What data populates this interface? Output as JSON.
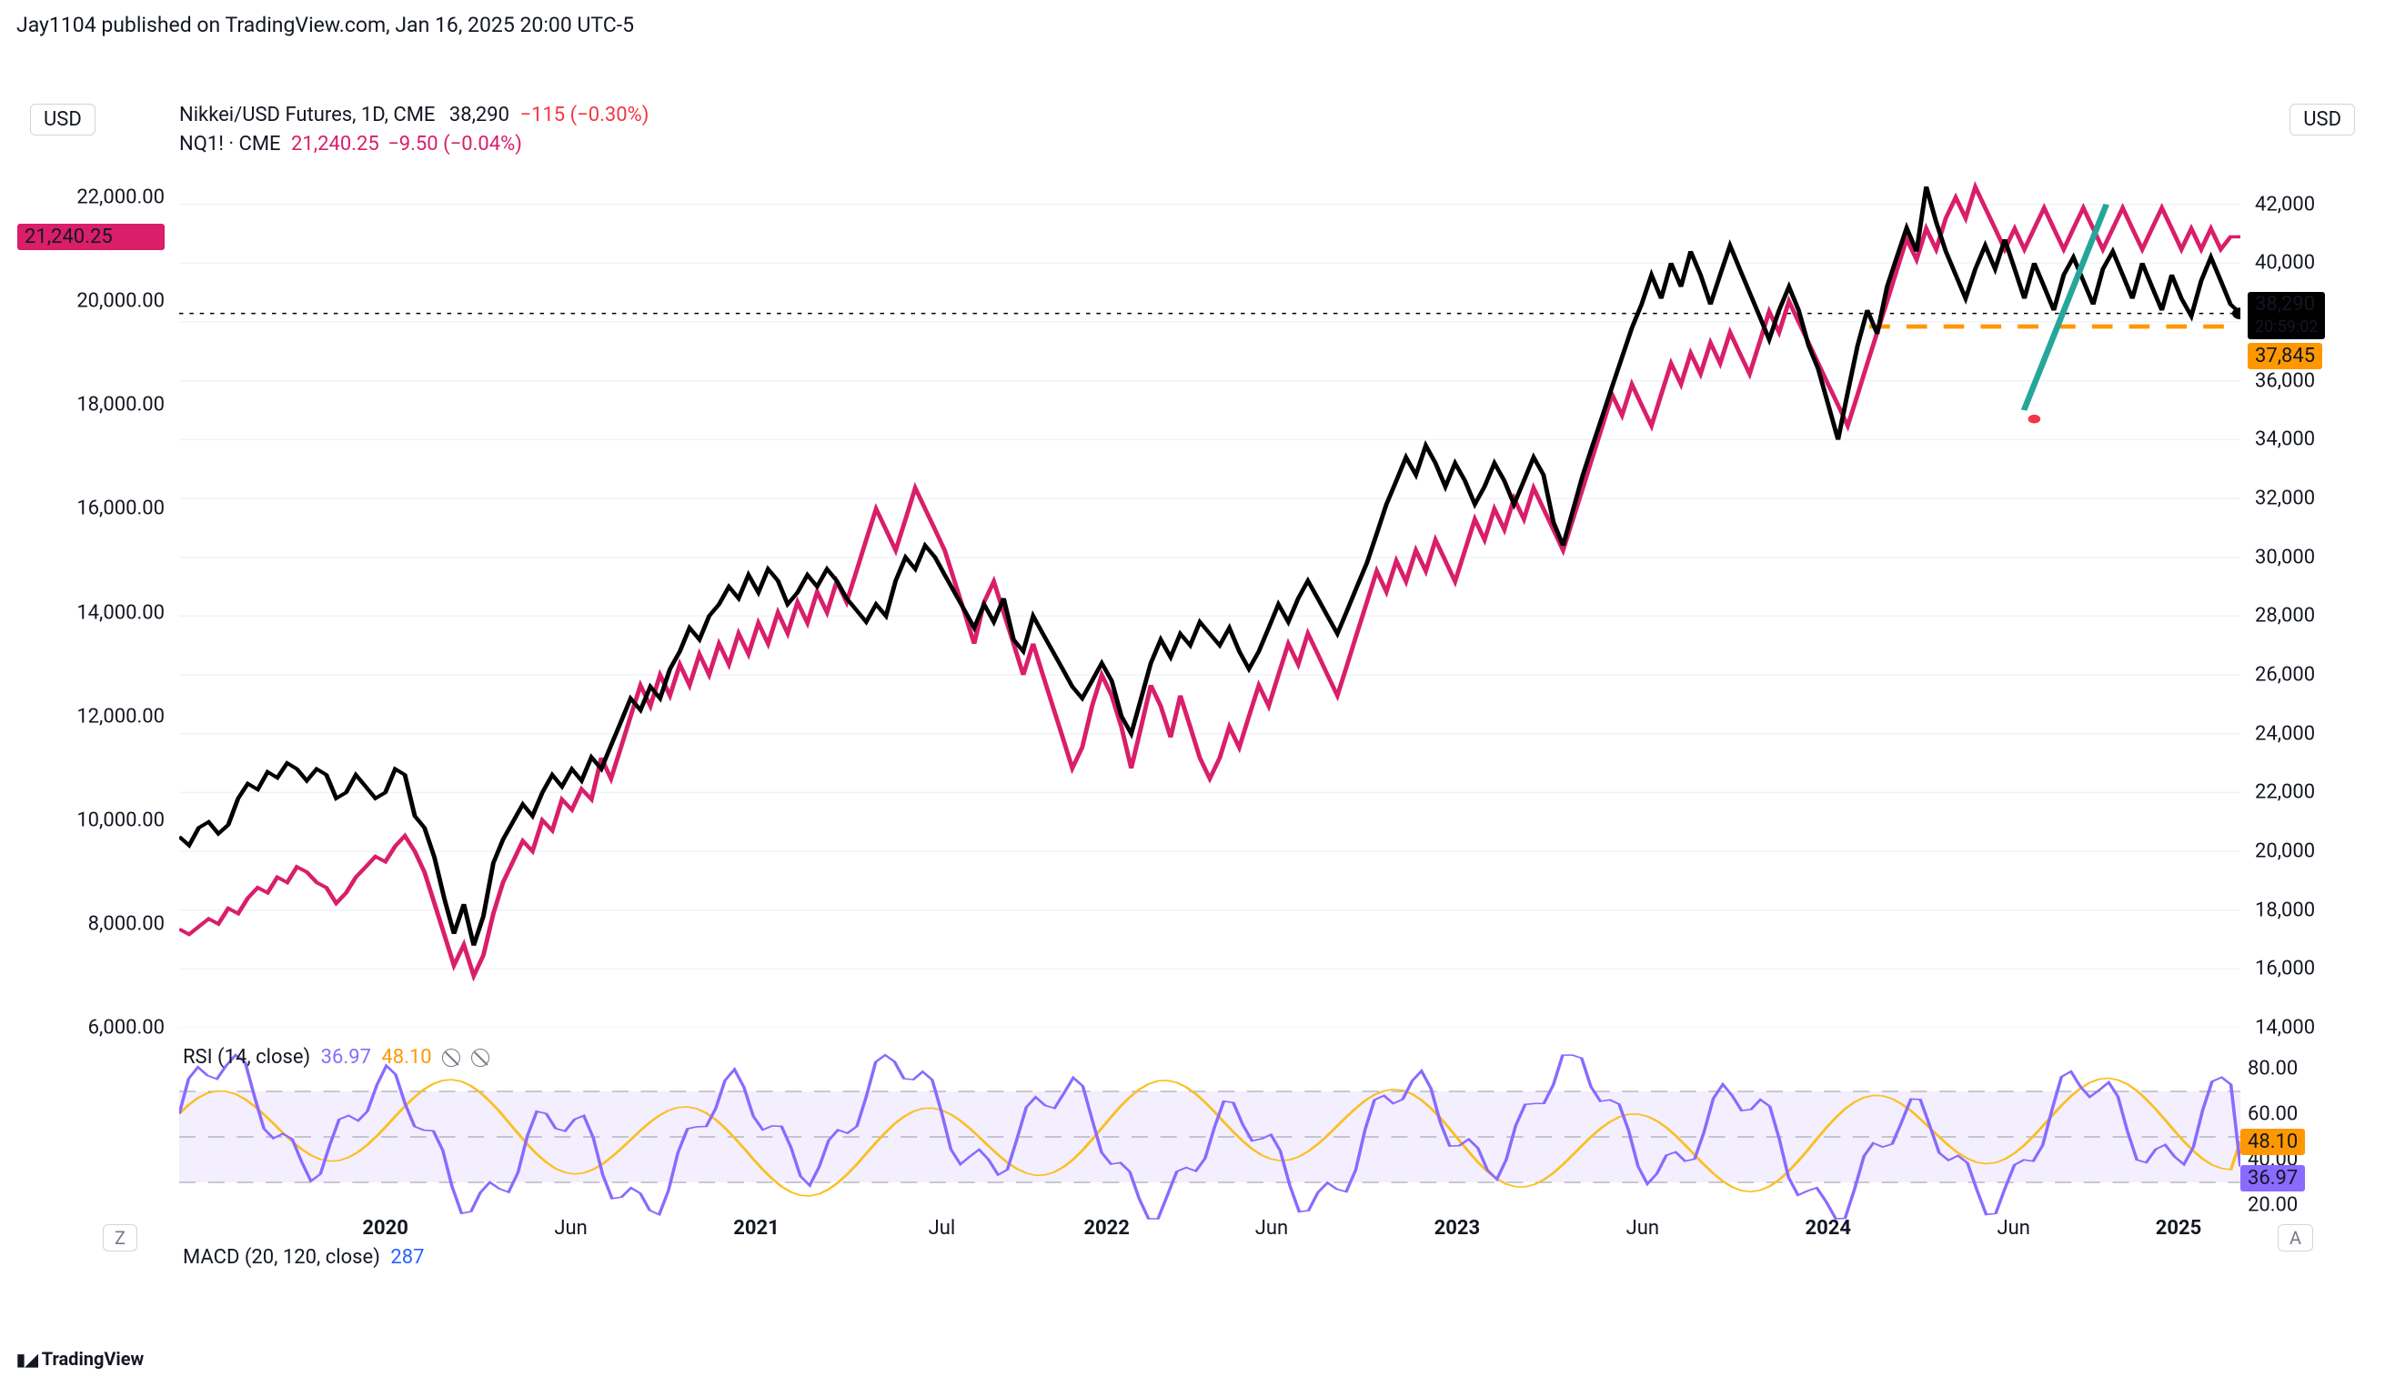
{
  "publish_line": "Jay1104 published on TradingView.com, Jan 16, 2025 20:00 UTC-5",
  "usd_label": "USD",
  "legend": {
    "row1_symbol": "Nikkei/USD Futures, 1D, CME",
    "row1_price": "38,290",
    "row1_change": "−115 (−0.30%)",
    "row2_symbol": "NQ1! · CME",
    "row2_price": "21,240.25",
    "row2_change": "−9.50 (−0.04%)"
  },
  "left_axis": {
    "ticks": [
      "22,000.00",
      "20,000.00",
      "18,000.00",
      "16,000.00",
      "14,000.00",
      "12,000.00",
      "10,000.00",
      "8,000.00",
      "6,000.00"
    ],
    "range_min": 6000,
    "range_max": 23000,
    "badge_value": "21,240.25",
    "badge_color": "#d91e6a",
    "badge_at": 21240
  },
  "right_axis": {
    "ticks": [
      "42,000",
      "40,000",
      "38,290",
      "36,000",
      "34,000",
      "32,000",
      "30,000",
      "28,000",
      "26,000",
      "24,000",
      "22,000",
      "20,000",
      "18,000",
      "16,000",
      "14,000"
    ],
    "range_min": 14000,
    "range_max": 44000,
    "badge_price": "38,290",
    "badge_sub": "20:59:02",
    "badge_price_at": 38290,
    "badge_orange": "37,845",
    "badge_orange_at": 37845
  },
  "xaxis": {
    "labels": [
      {
        "t": "2020",
        "x": 0.1,
        "bold": true
      },
      {
        "t": "Jun",
        "x": 0.19,
        "bold": false
      },
      {
        "t": "2021",
        "x": 0.28,
        "bold": true
      },
      {
        "t": "Jul",
        "x": 0.37,
        "bold": false
      },
      {
        "t": "2022",
        "x": 0.45,
        "bold": true
      },
      {
        "t": "Jun",
        "x": 0.53,
        "bold": false
      },
      {
        "t": "2023",
        "x": 0.62,
        "bold": true
      },
      {
        "t": "Jun",
        "x": 0.71,
        "bold": false
      },
      {
        "t": "2024",
        "x": 0.8,
        "bold": true
      },
      {
        "t": "Jun",
        "x": 0.89,
        "bold": false
      },
      {
        "t": "2025",
        "x": 0.97,
        "bold": true
      }
    ]
  },
  "main_chart": {
    "black_series_color": "#000000",
    "pink_series_color": "#d91e6a",
    "green_line_color": "#26a69a",
    "orange_dash_color": "#ff9800",
    "dotted_line_color": "#000000",
    "grid_color": "#f0f3fa",
    "n_points": 220,
    "black": [
      20500,
      20200,
      20800,
      21000,
      20600,
      20900,
      21800,
      22300,
      22100,
      22700,
      22500,
      23000,
      22800,
      22400,
      22800,
      22600,
      21800,
      22000,
      22600,
      22200,
      21800,
      22000,
      22800,
      22600,
      21200,
      20800,
      19800,
      18400,
      17200,
      18200,
      16800,
      17800,
      19600,
      20400,
      21000,
      21600,
      21200,
      22000,
      22600,
      22200,
      22800,
      22400,
      23200,
      22800,
      23600,
      24400,
      25200,
      24800,
      25600,
      25200,
      26200,
      26800,
      27600,
      27200,
      28000,
      28400,
      29000,
      28600,
      29400,
      28800,
      29600,
      29200,
      28400,
      28800,
      29400,
      29000,
      29600,
      29200,
      28600,
      28200,
      27800,
      28400,
      28000,
      29200,
      30000,
      29600,
      30400,
      30000,
      29400,
      28800,
      28200,
      27600,
      28400,
      27800,
      28600,
      27200,
      26800,
      28000,
      27400,
      26800,
      26200,
      25600,
      25200,
      25800,
      26400,
      25800,
      24600,
      24000,
      25200,
      26400,
      27200,
      26600,
      27400,
      27000,
      27800,
      27400,
      27000,
      27600,
      26800,
      26200,
      26800,
      27600,
      28400,
      27800,
      28600,
      29200,
      28600,
      28000,
      27400,
      28200,
      29000,
      29800,
      30800,
      31800,
      32600,
      33400,
      32800,
      33800,
      33200,
      32400,
      33200,
      32600,
      31800,
      32400,
      33200,
      32600,
      31800,
      32600,
      33400,
      32800,
      31200,
      30400,
      31600,
      32800,
      33800,
      34800,
      35800,
      36800,
      37800,
      38600,
      39600,
      38800,
      40000,
      39200,
      40400,
      39600,
      38600,
      39600,
      40600,
      39800,
      39000,
      38200,
      37400,
      38400,
      39200,
      38400,
      37200,
      36400,
      35200,
      34000,
      35600,
      37200,
      38400,
      37600,
      39200,
      40200,
      41200,
      40400,
      42600,
      41400,
      40400,
      39600,
      38800,
      39800,
      40600,
      39800,
      40800,
      39800,
      38800,
      40000,
      39200,
      38400,
      39600,
      40200,
      39400,
      38600,
      39800,
      40400,
      39600,
      38800,
      40000,
      39200,
      38400,
      39600,
      38800,
      38200,
      39400,
      40200,
      39400,
      38600,
      38290
    ],
    "pink": [
      7900,
      7800,
      7950,
      8100,
      8000,
      8300,
      8200,
      8500,
      8700,
      8600,
      8900,
      8800,
      9100,
      9000,
      8800,
      8700,
      8400,
      8600,
      8900,
      9100,
      9300,
      9200,
      9500,
      9700,
      9400,
      9000,
      8400,
      7800,
      7200,
      7600,
      7000,
      7400,
      8200,
      8800,
      9200,
      9600,
      9400,
      10000,
      9800,
      10400,
      10200,
      10600,
      10400,
      11200,
      10800,
      11400,
      12000,
      12600,
      12200,
      12800,
      12400,
      13000,
      12600,
      13200,
      12800,
      13400,
      13000,
      13600,
      13200,
      13800,
      13400,
      14000,
      13600,
      14200,
      13800,
      14400,
      14000,
      14600,
      14200,
      14800,
      15400,
      16000,
      15600,
      15200,
      15800,
      16400,
      16000,
      15600,
      15200,
      14600,
      14000,
      13400,
      14200,
      14600,
      14000,
      13400,
      12800,
      13400,
      12800,
      12200,
      11600,
      11000,
      11400,
      12200,
      12800,
      12400,
      11800,
      11000,
      11800,
      12600,
      12200,
      11600,
      12400,
      11800,
      11200,
      10800,
      11200,
      11800,
      11400,
      12000,
      12600,
      12200,
      12800,
      13400,
      13000,
      13600,
      13200,
      12800,
      12400,
      13000,
      13600,
      14200,
      14800,
      14400,
      15000,
      14600,
      15200,
      14800,
      15400,
      15000,
      14600,
      15200,
      15800,
      15400,
      16000,
      15600,
      16200,
      15800,
      16400,
      16000,
      15600,
      15200,
      15800,
      16400,
      17000,
      17600,
      18200,
      17800,
      18400,
      18000,
      17600,
      18200,
      18800,
      18400,
      19000,
      18600,
      19200,
      18800,
      19400,
      19000,
      18600,
      19200,
      19800,
      19400,
      20000,
      19600,
      19200,
      18800,
      18400,
      18000,
      17600,
      18200,
      18800,
      19400,
      20000,
      20600,
      21200,
      20800,
      21400,
      21000,
      21600,
      22000,
      21600,
      22200,
      21800,
      21400,
      21000,
      21400,
      21000,
      21400,
      21800,
      21400,
      21000,
      21400,
      21800,
      21400,
      21000,
      21400,
      21800,
      21400,
      21000,
      21400,
      21800,
      21400,
      21000,
      21400,
      21000,
      21400,
      21000,
      21240,
      21240
    ]
  },
  "rsi": {
    "label": "RSI (14, close)",
    "v1": "36.97",
    "v2": "48.10",
    "purple_color": "#8a6aff",
    "yellow_color": "#fbbf24",
    "band_fill": "#f3efff",
    "dash_color": "#9598a1",
    "range_min": 10,
    "range_max": 90,
    "ticks": [
      "80.00",
      "60.00",
      "40.00",
      "20.00"
    ],
    "badge_orange": "48.10",
    "badge_purple": "36.97",
    "n_points": 220
  },
  "macd": {
    "label": "MACD (20, 120, close)",
    "value": "287"
  },
  "footer": {
    "z": "Z",
    "a": "A",
    "tv": "TradingView"
  }
}
